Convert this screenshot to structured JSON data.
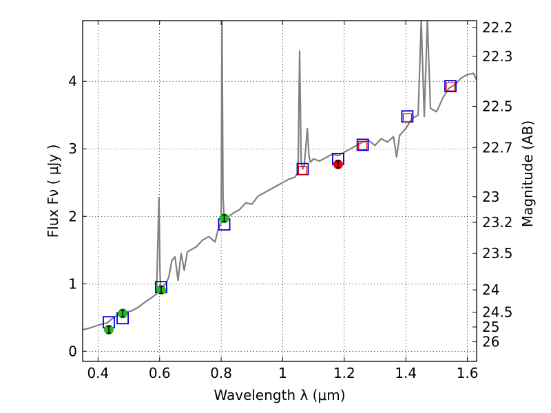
{
  "chart_data": {
    "type": "line",
    "xlabel": "Wavelength  λ (μm)",
    "ylabel": "Flux  Fν  ( μJy )",
    "ylabel_right": "Magnitude (AB)",
    "xlim": [
      0.35,
      1.63
    ],
    "ylim": [
      -0.15,
      4.9
    ],
    "grid": true,
    "x_ticks": [
      {
        "value": 0.4,
        "label": "0.4"
      },
      {
        "value": 0.6,
        "label": "0.6"
      },
      {
        "value": 0.8,
        "label": "0.8"
      },
      {
        "value": 1.0,
        "label": "1"
      },
      {
        "value": 1.2,
        "label": "1.2"
      },
      {
        "value": 1.4,
        "label": "1.4"
      },
      {
        "value": 1.6,
        "label": "1.6"
      }
    ],
    "y_ticks": [
      {
        "value": 0,
        "label": "0"
      },
      {
        "value": 1,
        "label": "1"
      },
      {
        "value": 2,
        "label": "2"
      },
      {
        "value": 3,
        "label": "3"
      },
      {
        "value": 4,
        "label": "4"
      }
    ],
    "right_ticks": [
      {
        "label": "22.2",
        "flux": 4.8
      },
      {
        "label": "22.3",
        "flux": 4.37
      },
      {
        "label": "22.5",
        "flux": 3.63
      },
      {
        "label": "22.7",
        "flux": 3.02
      },
      {
        "label": "23",
        "flux": 2.29
      },
      {
        "label": "23.2",
        "flux": 1.91
      },
      {
        "label": "23.5",
        "flux": 1.45
      },
      {
        "label": "24",
        "flux": 0.91
      },
      {
        "label": "24.5",
        "flux": 0.58
      },
      {
        "label": "25",
        "flux": 0.36
      },
      {
        "label": "26",
        "flux": 0.14
      }
    ],
    "series": [
      {
        "name": "model spectrum",
        "kind": "line",
        "color": "#808080",
        "x": [
          0.35,
          0.37,
          0.39,
          0.41,
          0.43,
          0.45,
          0.47,
          0.49,
          0.51,
          0.53,
          0.55,
          0.57,
          0.59,
          0.598,
          0.601,
          0.604,
          0.61,
          0.62,
          0.63,
          0.64,
          0.65,
          0.66,
          0.67,
          0.68,
          0.69,
          0.7,
          0.72,
          0.74,
          0.76,
          0.78,
          0.79,
          0.8,
          0.803,
          0.806,
          0.81,
          0.82,
          0.84,
          0.86,
          0.88,
          0.9,
          0.92,
          0.94,
          0.96,
          0.98,
          1.0,
          1.02,
          1.04,
          1.05,
          1.055,
          1.06,
          1.065,
          1.07,
          1.08,
          1.085,
          1.09,
          1.1,
          1.12,
          1.14,
          1.16,
          1.18,
          1.2,
          1.22,
          1.24,
          1.26,
          1.28,
          1.3,
          1.32,
          1.34,
          1.36,
          1.37,
          1.38,
          1.4,
          1.42,
          1.44,
          1.45,
          1.46,
          1.47,
          1.48,
          1.5,
          1.52,
          1.54,
          1.56,
          1.58,
          1.6,
          1.62,
          1.63
        ],
        "y": [
          0.32,
          0.34,
          0.37,
          0.4,
          0.42,
          0.5,
          0.55,
          0.58,
          0.6,
          0.65,
          0.72,
          0.78,
          0.85,
          2.28,
          1.2,
          0.92,
          0.95,
          1.0,
          1.1,
          1.35,
          1.4,
          1.05,
          1.45,
          1.2,
          1.47,
          1.5,
          1.55,
          1.65,
          1.7,
          1.62,
          1.8,
          1.9,
          4.9,
          2.3,
          1.95,
          1.98,
          2.05,
          2.1,
          2.2,
          2.18,
          2.3,
          2.35,
          2.4,
          2.45,
          2.5,
          2.55,
          2.58,
          2.65,
          4.45,
          2.8,
          2.7,
          2.75,
          3.3,
          2.9,
          2.8,
          2.85,
          2.82,
          2.87,
          2.92,
          2.9,
          2.95,
          3.0,
          3.05,
          3.1,
          3.12,
          3.05,
          3.15,
          3.1,
          3.18,
          2.88,
          3.2,
          3.3,
          3.45,
          3.5,
          4.9,
          3.48,
          4.9,
          3.6,
          3.55,
          3.75,
          3.9,
          3.95,
          4.05,
          4.1,
          4.12,
          4.02
        ]
      },
      {
        "name": "model photometry (blue squares)",
        "kind": "marker",
        "marker": "open-square",
        "color": "#0000dd",
        "x": [
          0.435,
          0.48,
          0.605,
          0.81,
          1.065,
          1.18,
          1.26,
          1.405,
          1.545
        ],
        "y": [
          0.43,
          0.49,
          0.95,
          1.88,
          2.7,
          2.85,
          3.06,
          3.48,
          3.93
        ]
      },
      {
        "name": "model photometry (red squares)",
        "kind": "marker",
        "marker": "open-square-small",
        "color": "#dd0000",
        "x": [
          1.065,
          1.26,
          1.405,
          1.545
        ],
        "y": [
          2.68,
          3.05,
          3.46,
          3.92
        ]
      },
      {
        "name": "observed photometry",
        "kind": "marker",
        "marker": "circle-errorbar",
        "color": "#22bb22",
        "x": [
          0.435,
          0.48,
          0.605,
          0.81
        ],
        "y": [
          0.32,
          0.56,
          0.91,
          1.97
        ]
      },
      {
        "name": "observed photometry (red)",
        "kind": "marker",
        "marker": "circle-errorbar",
        "color": "#ee0000",
        "x": [
          1.18
        ],
        "y": [
          2.77
        ]
      }
    ]
  }
}
